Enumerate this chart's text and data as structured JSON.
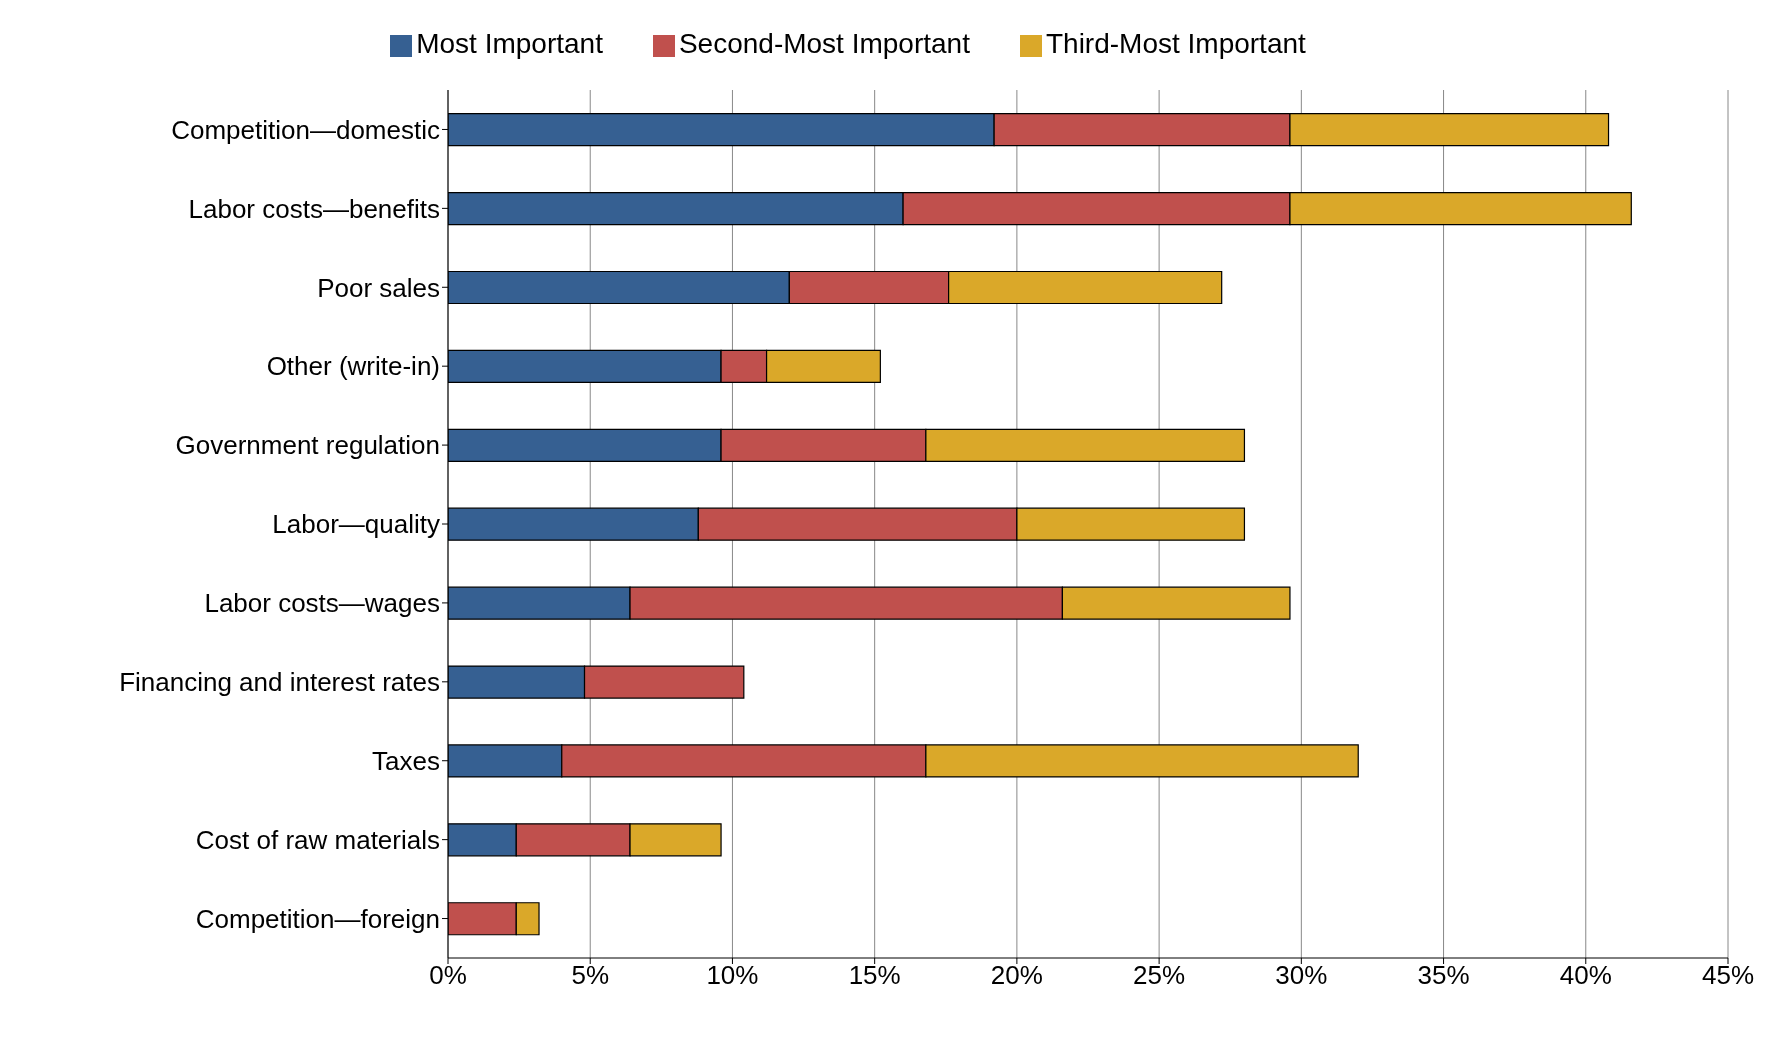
{
  "chart_data": {
    "type": "bar",
    "orientation": "horizontal",
    "stacked": true,
    "categories": [
      "Competition—domestic",
      "Labor costs—benefits",
      "Poor sales",
      "Other (write-in)",
      "Government regulation",
      "Labor—quality",
      "Labor costs—wages",
      "Financing and interest rates",
      "Taxes",
      "Cost of raw materials",
      "Competition—foreign"
    ],
    "series": [
      {
        "name": "Most Important",
        "color": "#366092",
        "values": [
          19.2,
          16.0,
          12.0,
          9.6,
          9.6,
          8.8,
          6.4,
          4.8,
          4.0,
          2.4,
          0
        ]
      },
      {
        "name": "Second-Most Important",
        "color": "#c0504d",
        "values": [
          10.4,
          13.6,
          5.6,
          1.6,
          7.2,
          11.2,
          15.2,
          5.6,
          12.8,
          4.0,
          2.4
        ]
      },
      {
        "name": "Third-Most Important",
        "color": "#daa829",
        "values": [
          11.2,
          12.0,
          9.6,
          4.0,
          11.2,
          8.0,
          8.0,
          0,
          15.2,
          3.2,
          0.8
        ]
      }
    ],
    "xlim": [
      0,
      45
    ],
    "xticks": [
      {
        "value": 0,
        "label": "0%"
      },
      {
        "value": 5,
        "label": "5%"
      },
      {
        "value": 10,
        "label": "10%"
      },
      {
        "value": 15,
        "label": "15%"
      },
      {
        "value": 20,
        "label": "20%"
      },
      {
        "value": 25,
        "label": "25%"
      },
      {
        "value": 30,
        "label": "30%"
      },
      {
        "value": 35,
        "label": "35%"
      },
      {
        "value": 40,
        "label": "40%"
      },
      {
        "value": 45,
        "label": "45%"
      }
    ],
    "grid": "x",
    "legend": "top"
  }
}
